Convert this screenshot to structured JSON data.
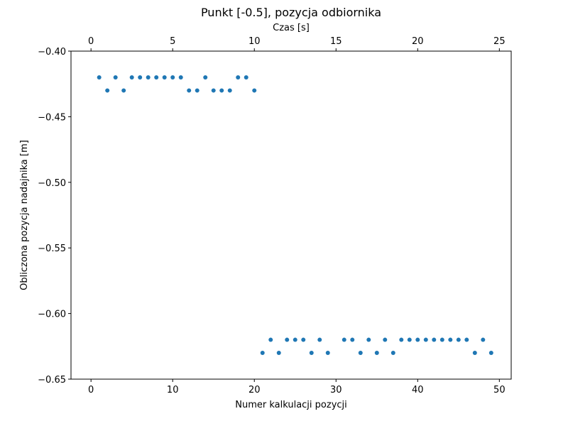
{
  "chart_data": {
    "type": "scatter",
    "title": "Punkt [-0.5], pozycja odbiornika",
    "xlabel": "Numer kalkulacji pozycji",
    "ylabel": "Obliczona pozycja nadajnika [m]",
    "x2label": "Czas [s]",
    "xlim": [
      -2.45,
      51.45
    ],
    "x2lim": [
      -1.225,
      25.725
    ],
    "ylim": [
      -0.65,
      -0.4
    ],
    "xticks": [
      0,
      10,
      20,
      30,
      40,
      50
    ],
    "x2ticks": [
      0,
      5,
      10,
      15,
      20,
      25
    ],
    "yticks": [
      -0.4,
      -0.45,
      -0.5,
      -0.55,
      -0.6,
      -0.65
    ],
    "ytick_labels": [
      "−0.40",
      "−0.45",
      "−0.50",
      "−0.55",
      "−0.60",
      "−0.65"
    ],
    "grid": false,
    "marker_color": "#1f77b4",
    "series": [
      {
        "x": [
          1,
          2,
          3,
          4,
          5,
          6,
          7,
          8,
          9,
          10,
          11,
          12,
          13,
          14,
          15,
          16,
          17,
          18,
          19,
          20,
          21,
          22,
          23,
          24,
          25,
          26,
          27,
          28,
          29,
          31,
          32,
          33,
          34,
          35,
          36,
          37,
          38,
          39,
          40,
          41,
          42,
          43,
          44,
          45,
          46,
          47,
          48,
          49
        ],
        "y": [
          -0.42,
          -0.43,
          -0.42,
          -0.43,
          -0.42,
          -0.42,
          -0.42,
          -0.42,
          -0.42,
          -0.42,
          -0.42,
          -0.43,
          -0.43,
          -0.42,
          -0.43,
          -0.43,
          -0.43,
          -0.42,
          -0.42,
          -0.43,
          -0.63,
          -0.62,
          -0.63,
          -0.62,
          -0.62,
          -0.62,
          -0.63,
          -0.62,
          -0.63,
          -0.62,
          -0.62,
          -0.63,
          -0.62,
          -0.63,
          -0.62,
          -0.63,
          -0.62,
          -0.62,
          -0.62,
          -0.62,
          -0.62,
          -0.62,
          -0.62,
          -0.62,
          -0.62,
          -0.63,
          -0.62,
          -0.63
        ]
      }
    ]
  }
}
